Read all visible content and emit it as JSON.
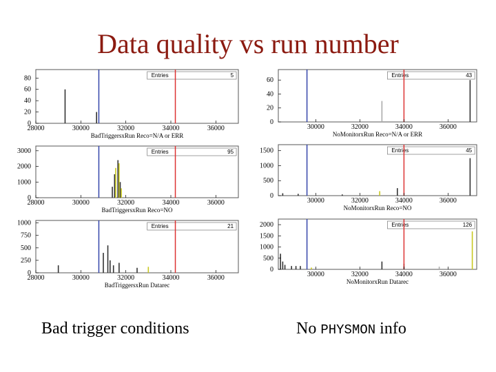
{
  "slide": {
    "title": "Data quality vs run number",
    "caption_left": "Bad trigger conditions",
    "caption_right_prefix": "No ",
    "caption_right_mono": "PHYSMON",
    "caption_right_suffix": " info"
  },
  "colors": {
    "title": "#8b1a10",
    "blue_line": "#3344aa",
    "red_line": "#dd3333",
    "bar": "#333333",
    "bar_alt": "#c8c820",
    "frame": "#555555"
  },
  "chart_data": [
    {
      "type": "bar",
      "xlabel": "BadTriggersxRun Reco=N/A or ERR",
      "x_ticks": [
        "28000",
        "30000",
        "32000",
        "34000",
        "36000"
      ],
      "y_ticks": [
        "0",
        "20",
        "40",
        "60",
        "80"
      ],
      "xlim": [
        28000,
        37000
      ],
      "ylim": [
        0,
        95
      ],
      "stats": {
        "label": "Entries",
        "value": "5"
      },
      "blue_run": 30800,
      "red_run": 34200,
      "bars": [
        {
          "x": 29300,
          "y": 60,
          "color": "bar"
        },
        {
          "x": 30700,
          "y": 20,
          "color": "bar"
        }
      ]
    },
    {
      "type": "bar",
      "xlabel": "NoMonitorxRun Reco=N/A or ERR",
      "x_ticks": [
        "30000",
        "32000",
        "34000",
        "36000"
      ],
      "y_ticks": [
        "0",
        "20",
        "40",
        "60"
      ],
      "xlim": [
        28300,
        37300
      ],
      "ylim": [
        0,
        75
      ],
      "stats": {
        "label": "Entries",
        "value": "43"
      },
      "blue_run": 29600,
      "red_run": 34000,
      "bars": [
        {
          "x": 33000,
          "y": 30,
          "color": "bar_light"
        },
        {
          "x": 37000,
          "y": 60,
          "color": "bar"
        }
      ]
    },
    {
      "type": "bar",
      "xlabel": "BadTriggersxRun Reco=NO",
      "x_ticks": [
        "28000",
        "30000",
        "32000",
        "34000",
        "36000"
      ],
      "y_ticks": [
        "0",
        "1000",
        "2000",
        "3000"
      ],
      "xlim": [
        28000,
        37000
      ],
      "ylim": [
        0,
        3300
      ],
      "stats": {
        "label": "Entries",
        "value": "95"
      },
      "blue_run": 30800,
      "red_run": 34200,
      "bars": [
        {
          "x": 31400,
          "y": 700,
          "color": "bar"
        },
        {
          "x": 31500,
          "y": 1500,
          "color": "bar"
        },
        {
          "x": 31550,
          "y": 1900,
          "color": "bar_alt"
        },
        {
          "x": 31650,
          "y": 2400,
          "color": "bar"
        },
        {
          "x": 31700,
          "y": 2200,
          "color": "bar_alt"
        },
        {
          "x": 31750,
          "y": 1000,
          "color": "bar"
        },
        {
          "x": 31800,
          "y": 600,
          "color": "bar_alt"
        }
      ]
    },
    {
      "type": "bar",
      "xlabel": "NoMonitorxRun Reco=NO",
      "x_ticks": [
        "30000",
        "32000",
        "34000",
        "36000"
      ],
      "y_ticks": [
        "0",
        "500",
        "1000",
        "1500"
      ],
      "xlim": [
        28300,
        37300
      ],
      "ylim": [
        0,
        1700
      ],
      "stats": {
        "label": "Entries",
        "value": "45"
      },
      "blue_run": 29600,
      "red_run": 34000,
      "bars": [
        {
          "x": 28500,
          "y": 80,
          "color": "bar"
        },
        {
          "x": 29200,
          "y": 60,
          "color": "bar"
        },
        {
          "x": 31200,
          "y": 40,
          "color": "bar"
        },
        {
          "x": 32900,
          "y": 150,
          "color": "bar_alt"
        },
        {
          "x": 33700,
          "y": 250,
          "color": "bar"
        },
        {
          "x": 37000,
          "y": 1250,
          "color": "bar"
        }
      ]
    },
    {
      "type": "bar",
      "xlabel": "BadTriggersxRun Datarec",
      "x_ticks": [
        "28000",
        "30000",
        "32000",
        "34000",
        "36000"
      ],
      "y_ticks": [
        "0",
        "250",
        "500",
        "750",
        "1000"
      ],
      "xlim": [
        28000,
        37000
      ],
      "ylim": [
        0,
        1050
      ],
      "stats": {
        "label": "Entries",
        "value": "21"
      },
      "blue_run": 30800,
      "red_run": 34200,
      "bars": [
        {
          "x": 29000,
          "y": 150,
          "color": "bar"
        },
        {
          "x": 31000,
          "y": 400,
          "color": "bar"
        },
        {
          "x": 31200,
          "y": 550,
          "color": "bar"
        },
        {
          "x": 31300,
          "y": 250,
          "color": "bar"
        },
        {
          "x": 31450,
          "y": 150,
          "color": "bar"
        },
        {
          "x": 31700,
          "y": 200,
          "color": "bar"
        },
        {
          "x": 32500,
          "y": 100,
          "color": "bar"
        },
        {
          "x": 33000,
          "y": 120,
          "color": "bar_alt"
        }
      ]
    },
    {
      "type": "bar",
      "xlabel": "NoMonitorxRun Datarec",
      "x_ticks": [
        "30000",
        "32000",
        "34000",
        "36000"
      ],
      "y_ticks": [
        "0",
        "500",
        "1000",
        "1500",
        "2000"
      ],
      "xlim": [
        28300,
        37300
      ],
      "ylim": [
        0,
        2250
      ],
      "stats": {
        "label": "Entries",
        "value": "126"
      },
      "blue_run": 29600,
      "red_run": 34000,
      "bars": [
        {
          "x": 28400,
          "y": 700,
          "color": "bar"
        },
        {
          "x": 28500,
          "y": 350,
          "color": "bar"
        },
        {
          "x": 28600,
          "y": 200,
          "color": "bar"
        },
        {
          "x": 28900,
          "y": 150,
          "color": "bar"
        },
        {
          "x": 29100,
          "y": 150,
          "color": "bar"
        },
        {
          "x": 29300,
          "y": 150,
          "color": "bar"
        },
        {
          "x": 29800,
          "y": 80,
          "color": "bar_alt"
        },
        {
          "x": 33000,
          "y": 350,
          "color": "bar"
        },
        {
          "x": 34000,
          "y": 250,
          "color": "bar"
        },
        {
          "x": 35600,
          "y": 120,
          "color": "bar_light"
        },
        {
          "x": 37100,
          "y": 1700,
          "color": "bar_alt"
        }
      ]
    }
  ]
}
